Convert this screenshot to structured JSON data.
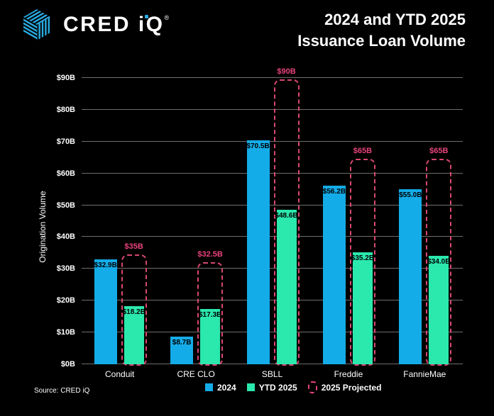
{
  "header": {
    "logo_text": "CRED iQ",
    "registered_mark": "®",
    "title_line1": "2024 and YTD 2025",
    "title_line2": "Issuance Loan Volume"
  },
  "chart_data": {
    "type": "bar",
    "title": "2024 and YTD 2025 Issuance Loan Volume",
    "xlabel": "",
    "ylabel": "Origination Volume",
    "categories": [
      "Conduit",
      "CRE CLO",
      "SBLL",
      "Freddie",
      "FannieMae"
    ],
    "series": [
      {
        "name": "2024",
        "style": "solid-bar",
        "color": "#14ACE8",
        "values": [
          32.9,
          8.7,
          70.5,
          56.2,
          55.0
        ],
        "labels": [
          "$32.9B",
          "$8.7B",
          "$70.5B",
          "$56.2B",
          "$55.0B"
        ]
      },
      {
        "name": "YTD 2025",
        "style": "solid-bar",
        "color": "#2BE8AD",
        "values": [
          18.2,
          17.3,
          48.6,
          35.2,
          34.0
        ],
        "labels": [
          "$18.2B",
          "$17.3B",
          "$48.6B",
          "$35.2B",
          "$34.0B"
        ]
      },
      {
        "name": "2025 Projected",
        "style": "dashed-outline",
        "color": "#E8437C",
        "values": [
          35,
          32.5,
          90,
          65,
          65
        ],
        "labels": [
          "$35B",
          "$32.5B",
          "$90B",
          "$65B",
          "$65B"
        ]
      }
    ],
    "ylim": [
      0,
      90
    ],
    "yticks": [
      {
        "value": 0,
        "label": "$0B"
      },
      {
        "value": 10,
        "label": "$10B"
      },
      {
        "value": 20,
        "label": "$20B"
      },
      {
        "value": 30,
        "label": "$30B"
      },
      {
        "value": 40,
        "label": "$40B"
      },
      {
        "value": 50,
        "label": "$50B"
      },
      {
        "value": 60,
        "label": "$60B"
      },
      {
        "value": 70,
        "label": "$70B"
      },
      {
        "value": 80,
        "label": "$80B"
      },
      {
        "value": 90,
        "label": "$90B"
      }
    ],
    "grid": true,
    "legend_position": "bottom"
  },
  "footer": {
    "source": "Source: CRED iQ"
  },
  "colors": {
    "background": "#000000",
    "text": "#FFFFFF",
    "gridline": "#6E6E6E",
    "bar_value_label": "#000000",
    "brand_blue": "#29ABE2",
    "projected_pink": "#E8437C"
  }
}
